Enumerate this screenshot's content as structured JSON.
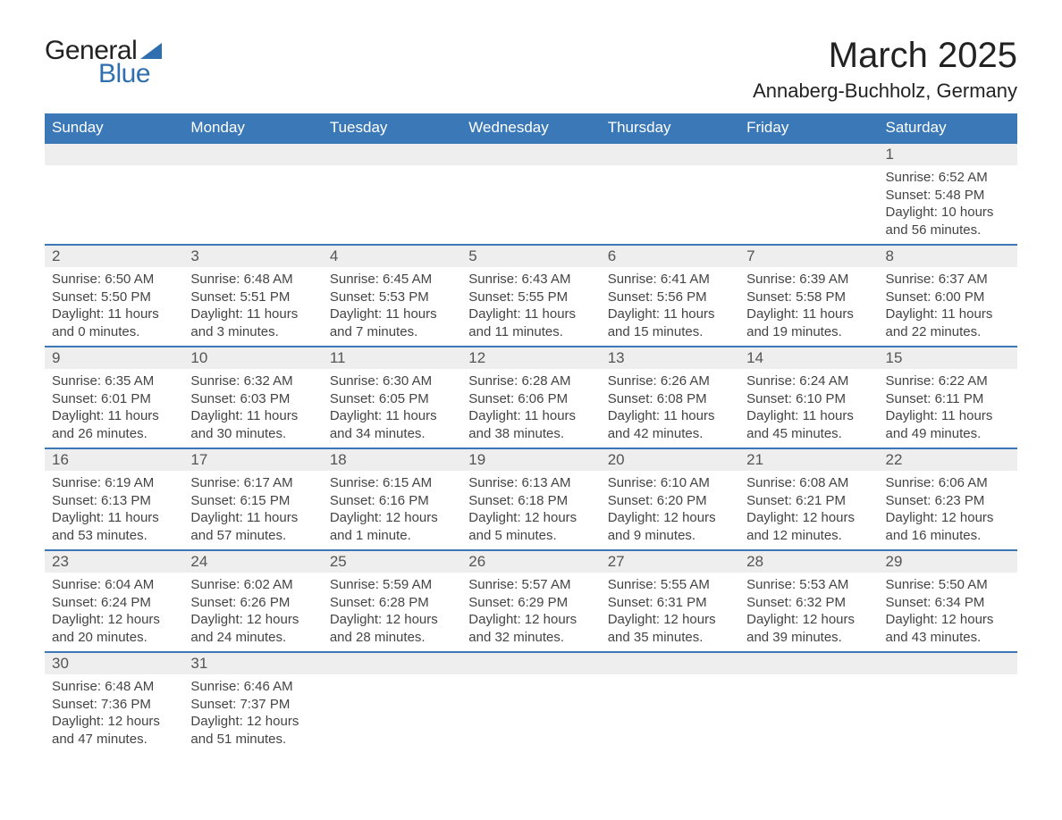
{
  "logo": {
    "text_general": "General",
    "text_blue": "Blue"
  },
  "title": "March 2025",
  "location": "Annaberg-Buchholz, Germany",
  "colors": {
    "header_bg": "#3a78b8",
    "header_text": "#ffffff",
    "daynum_bg": "#eeeeee",
    "row_divider": "#3a78b8",
    "body_text": "#444444",
    "logo_blue": "#2f6fb0",
    "page_bg": "#ffffff"
  },
  "day_names": [
    "Sunday",
    "Monday",
    "Tuesday",
    "Wednesday",
    "Thursday",
    "Friday",
    "Saturday"
  ],
  "weeks": [
    [
      null,
      null,
      null,
      null,
      null,
      null,
      {
        "n": "1",
        "sr": "6:52 AM",
        "ss": "5:48 PM",
        "dl": "10 hours and 56 minutes."
      }
    ],
    [
      {
        "n": "2",
        "sr": "6:50 AM",
        "ss": "5:50 PM",
        "dl": "11 hours and 0 minutes."
      },
      {
        "n": "3",
        "sr": "6:48 AM",
        "ss": "5:51 PM",
        "dl": "11 hours and 3 minutes."
      },
      {
        "n": "4",
        "sr": "6:45 AM",
        "ss": "5:53 PM",
        "dl": "11 hours and 7 minutes."
      },
      {
        "n": "5",
        "sr": "6:43 AM",
        "ss": "5:55 PM",
        "dl": "11 hours and 11 minutes."
      },
      {
        "n": "6",
        "sr": "6:41 AM",
        "ss": "5:56 PM",
        "dl": "11 hours and 15 minutes."
      },
      {
        "n": "7",
        "sr": "6:39 AM",
        "ss": "5:58 PM",
        "dl": "11 hours and 19 minutes."
      },
      {
        "n": "8",
        "sr": "6:37 AM",
        "ss": "6:00 PM",
        "dl": "11 hours and 22 minutes."
      }
    ],
    [
      {
        "n": "9",
        "sr": "6:35 AM",
        "ss": "6:01 PM",
        "dl": "11 hours and 26 minutes."
      },
      {
        "n": "10",
        "sr": "6:32 AM",
        "ss": "6:03 PM",
        "dl": "11 hours and 30 minutes."
      },
      {
        "n": "11",
        "sr": "6:30 AM",
        "ss": "6:05 PM",
        "dl": "11 hours and 34 minutes."
      },
      {
        "n": "12",
        "sr": "6:28 AM",
        "ss": "6:06 PM",
        "dl": "11 hours and 38 minutes."
      },
      {
        "n": "13",
        "sr": "6:26 AM",
        "ss": "6:08 PM",
        "dl": "11 hours and 42 minutes."
      },
      {
        "n": "14",
        "sr": "6:24 AM",
        "ss": "6:10 PM",
        "dl": "11 hours and 45 minutes."
      },
      {
        "n": "15",
        "sr": "6:22 AM",
        "ss": "6:11 PM",
        "dl": "11 hours and 49 minutes."
      }
    ],
    [
      {
        "n": "16",
        "sr": "6:19 AM",
        "ss": "6:13 PM",
        "dl": "11 hours and 53 minutes."
      },
      {
        "n": "17",
        "sr": "6:17 AM",
        "ss": "6:15 PM",
        "dl": "11 hours and 57 minutes."
      },
      {
        "n": "18",
        "sr": "6:15 AM",
        "ss": "6:16 PM",
        "dl": "12 hours and 1 minute."
      },
      {
        "n": "19",
        "sr": "6:13 AM",
        "ss": "6:18 PM",
        "dl": "12 hours and 5 minutes."
      },
      {
        "n": "20",
        "sr": "6:10 AM",
        "ss": "6:20 PM",
        "dl": "12 hours and 9 minutes."
      },
      {
        "n": "21",
        "sr": "6:08 AM",
        "ss": "6:21 PM",
        "dl": "12 hours and 12 minutes."
      },
      {
        "n": "22",
        "sr": "6:06 AM",
        "ss": "6:23 PM",
        "dl": "12 hours and 16 minutes."
      }
    ],
    [
      {
        "n": "23",
        "sr": "6:04 AM",
        "ss": "6:24 PM",
        "dl": "12 hours and 20 minutes."
      },
      {
        "n": "24",
        "sr": "6:02 AM",
        "ss": "6:26 PM",
        "dl": "12 hours and 24 minutes."
      },
      {
        "n": "25",
        "sr": "5:59 AM",
        "ss": "6:28 PM",
        "dl": "12 hours and 28 minutes."
      },
      {
        "n": "26",
        "sr": "5:57 AM",
        "ss": "6:29 PM",
        "dl": "12 hours and 32 minutes."
      },
      {
        "n": "27",
        "sr": "5:55 AM",
        "ss": "6:31 PM",
        "dl": "12 hours and 35 minutes."
      },
      {
        "n": "28",
        "sr": "5:53 AM",
        "ss": "6:32 PM",
        "dl": "12 hours and 39 minutes."
      },
      {
        "n": "29",
        "sr": "5:50 AM",
        "ss": "6:34 PM",
        "dl": "12 hours and 43 minutes."
      }
    ],
    [
      {
        "n": "30",
        "sr": "6:48 AM",
        "ss": "7:36 PM",
        "dl": "12 hours and 47 minutes."
      },
      {
        "n": "31",
        "sr": "6:46 AM",
        "ss": "7:37 PM",
        "dl": "12 hours and 51 minutes."
      },
      null,
      null,
      null,
      null,
      null
    ]
  ],
  "labels": {
    "sunrise": "Sunrise: ",
    "sunset": "Sunset: ",
    "daylight": "Daylight: "
  }
}
